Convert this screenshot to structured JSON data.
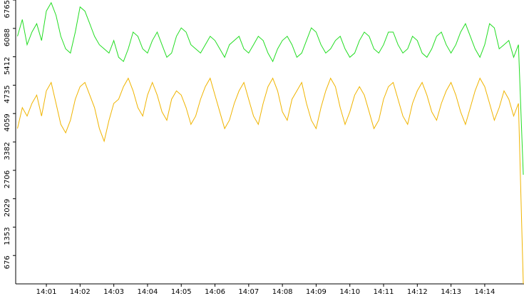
{
  "chart_data": {
    "type": "line",
    "categories": [
      null,
      null,
      null,
      null,
      null,
      null,
      "14:01",
      null,
      null,
      null,
      null,
      null,
      null,
      "14:02",
      null,
      null,
      null,
      null,
      null,
      null,
      "14:03",
      null,
      null,
      null,
      null,
      null,
      null,
      "14:04",
      null,
      null,
      null,
      null,
      null,
      null,
      "14:05",
      null,
      null,
      null,
      null,
      null,
      null,
      "14:06",
      null,
      null,
      null,
      null,
      null,
      null,
      "14:07",
      null,
      null,
      null,
      null,
      null,
      null,
      "14:08",
      null,
      null,
      null,
      null,
      null,
      null,
      "14:09",
      null,
      null,
      null,
      null,
      null,
      null,
      "14:10",
      null,
      null,
      null,
      null,
      null,
      null,
      "14:11",
      null,
      null,
      null,
      null,
      null,
      null,
      "14:12",
      null,
      null,
      null,
      null,
      null,
      null,
      "14:13",
      null,
      null,
      null,
      null,
      null,
      null,
      "14:14",
      null,
      null,
      null,
      null,
      null,
      null,
      null,
      null
    ],
    "series": [
      {
        "color": "#22dd22",
        "values": [
          5900,
          6300,
          5700,
          6000,
          6200,
          5800,
          6500,
          6700,
          6400,
          5900,
          5600,
          5500,
          6000,
          6600,
          6500,
          6200,
          5900,
          5700,
          5600,
          5500,
          5800,
          5400,
          5300,
          5600,
          6000,
          5900,
          5600,
          5500,
          5800,
          6000,
          5700,
          5400,
          5500,
          5900,
          6100,
          6000,
          5700,
          5600,
          5500,
          5700,
          5900,
          5800,
          5600,
          5400,
          5700,
          5800,
          5900,
          5600,
          5500,
          5700,
          5900,
          5800,
          5500,
          5300,
          5600,
          5800,
          5900,
          5700,
          5400,
          5500,
          5800,
          6100,
          6000,
          5700,
          5500,
          5600,
          5800,
          5900,
          5600,
          5400,
          5500,
          5800,
          6000,
          5900,
          5600,
          5500,
          5700,
          6000,
          6000,
          5700,
          5500,
          5600,
          5900,
          5800,
          5500,
          5400,
          5600,
          5900,
          6000,
          5700,
          5500,
          5700,
          6000,
          6200,
          5900,
          5600,
          5400,
          5700,
          6200,
          6100,
          5600,
          5700,
          5800,
          5400,
          5700,
          2600
        ]
      },
      {
        "color": "#f0b400",
        "values": [
          3700,
          4200,
          4000,
          4300,
          4500,
          4000,
          4600,
          4800,
          4300,
          3800,
          3600,
          3900,
          4400,
          4700,
          4800,
          4500,
          4200,
          3700,
          3400,
          3900,
          4300,
          4400,
          4700,
          4900,
          4600,
          4200,
          4000,
          4500,
          4800,
          4500,
          4100,
          3900,
          4400,
          4600,
          4500,
          4200,
          3800,
          4000,
          4400,
          4700,
          4900,
          4500,
          4100,
          3700,
          3900,
          4300,
          4600,
          4800,
          4400,
          4000,
          3800,
          4300,
          4700,
          4900,
          4600,
          4100,
          3900,
          4400,
          4600,
          4800,
          4300,
          3900,
          3700,
          4200,
          4600,
          4900,
          4700,
          4200,
          3800,
          4100,
          4500,
          4700,
          4500,
          4100,
          3700,
          3900,
          4400,
          4700,
          4800,
          4400,
          4000,
          3800,
          4300,
          4600,
          4800,
          4500,
          4100,
          3900,
          4300,
          4600,
          4800,
          4500,
          4100,
          3800,
          4200,
          4600,
          4900,
          4700,
          4300,
          3900,
          4200,
          4600,
          4400,
          4000,
          4300,
          0
        ]
      }
    ],
    "ylim": [
      0,
      6765
    ],
    "yticks": [
      676,
      1353,
      2029,
      2706,
      3382,
      4059,
      4735,
      5412,
      6088,
      6765
    ]
  }
}
